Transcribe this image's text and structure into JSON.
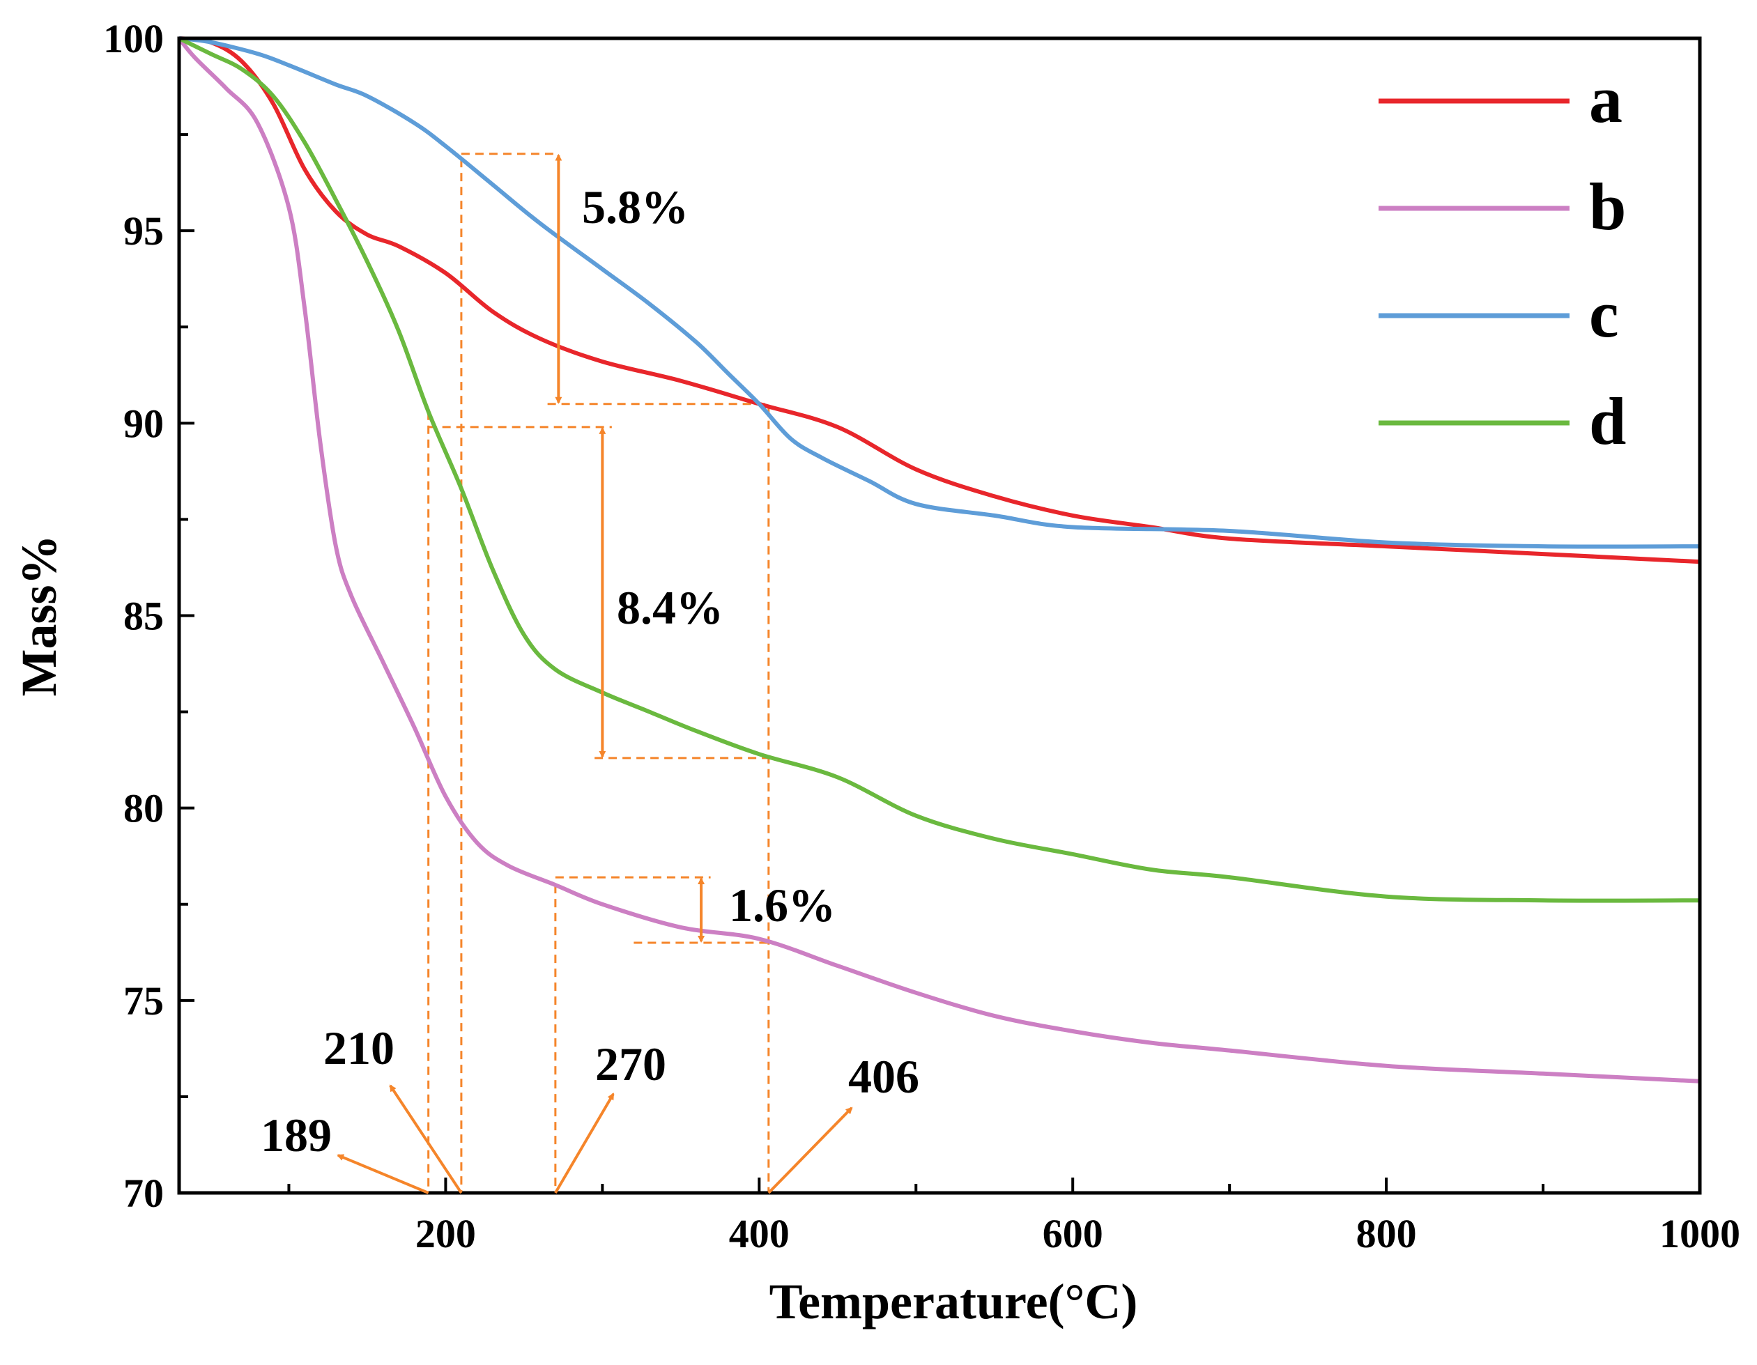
{
  "chart_data": {
    "type": "line",
    "xlabel": "Temperature(°C)",
    "ylabel": "Mass%",
    "xlim": [
      30,
      1000
    ],
    "ylim": [
      70,
      100
    ],
    "xticks": [
      200,
      400,
      600,
      800,
      1000
    ],
    "yticks": [
      70,
      75,
      80,
      85,
      90,
      95,
      100
    ],
    "x_minor_step": 100,
    "y_minor_step": 2.5,
    "legend_position": "top-right",
    "series": [
      {
        "name": "a",
        "color": "#e8262b",
        "x": [
          30,
          50,
          70,
          90,
          110,
          130,
          150,
          170,
          200,
          230,
          260,
          300,
          350,
          400,
          450,
          500,
          550,
          600,
          650,
          700,
          800,
          900,
          1000
        ],
        "y": [
          100,
          99.9,
          99.4,
          98.3,
          96.6,
          95.5,
          94.9,
          94.6,
          93.9,
          92.9,
          92.2,
          91.6,
          91.1,
          90.5,
          89.9,
          88.8,
          88.1,
          87.6,
          87.3,
          87.0,
          86.8,
          86.6,
          86.4
        ]
      },
      {
        "name": "b",
        "color": "#cc7fc3",
        "x": [
          30,
          40,
          60,
          80,
          100,
          110,
          120,
          130,
          140,
          160,
          180,
          200,
          220,
          240,
          270,
          300,
          350,
          400,
          450,
          500,
          550,
          600,
          650,
          700,
          800,
          900,
          1000
        ],
        "y": [
          100,
          99.5,
          98.7,
          97.8,
          95.6,
          93.0,
          89.5,
          86.8,
          85.5,
          83.8,
          82.1,
          80.3,
          79.1,
          78.5,
          78.0,
          77.5,
          76.9,
          76.6,
          75.9,
          75.2,
          74.6,
          74.2,
          73.9,
          73.7,
          73.3,
          73.1,
          72.9
        ]
      },
      {
        "name": "c",
        "color": "#5e9dd8",
        "x": [
          30,
          50,
          80,
          100,
          130,
          150,
          180,
          200,
          230,
          260,
          300,
          330,
          360,
          380,
          400,
          420,
          440,
          470,
          500,
          550,
          600,
          700,
          800,
          900,
          1000
        ],
        "y": [
          100,
          99.9,
          99.6,
          99.3,
          98.8,
          98.5,
          97.8,
          97.2,
          96.2,
          95.2,
          94.0,
          93.1,
          92.1,
          91.3,
          90.5,
          89.6,
          89.1,
          88.5,
          87.9,
          87.6,
          87.3,
          87.2,
          86.9,
          86.8,
          86.8
        ]
      },
      {
        "name": "d",
        "color": "#6ab93f",
        "x": [
          30,
          50,
          70,
          90,
          110,
          130,
          150,
          170,
          189,
          210,
          230,
          250,
          270,
          300,
          330,
          360,
          400,
          450,
          500,
          550,
          600,
          650,
          700,
          800,
          900,
          1000
        ],
        "y": [
          100,
          99.6,
          99.2,
          98.5,
          97.3,
          95.8,
          94.2,
          92.4,
          90.3,
          88.3,
          86.2,
          84.5,
          83.6,
          83.0,
          82.5,
          82.0,
          81.4,
          80.8,
          79.8,
          79.2,
          78.8,
          78.4,
          78.2,
          77.7,
          77.6,
          77.6
        ]
      }
    ],
    "annotations": {
      "percents": [
        {
          "label": "5.8%",
          "x": 272,
          "y_top": 97.0,
          "y_bottom": 90.5
        },
        {
          "label": "8.4%",
          "x": 300,
          "y_top": 89.9,
          "y_bottom": 81.3
        },
        {
          "label": "1.6%",
          "x": 363,
          "y_top": 78.2,
          "y_bottom": 76.5
        }
      ],
      "temperatures": [
        {
          "label": "189",
          "x": 189
        },
        {
          "label": "210",
          "x": 210
        },
        {
          "label": "270",
          "x": 270
        },
        {
          "label": "406",
          "x": 406
        }
      ]
    }
  },
  "colors": {
    "annotation": "#f5852a",
    "axis": "#000000"
  }
}
